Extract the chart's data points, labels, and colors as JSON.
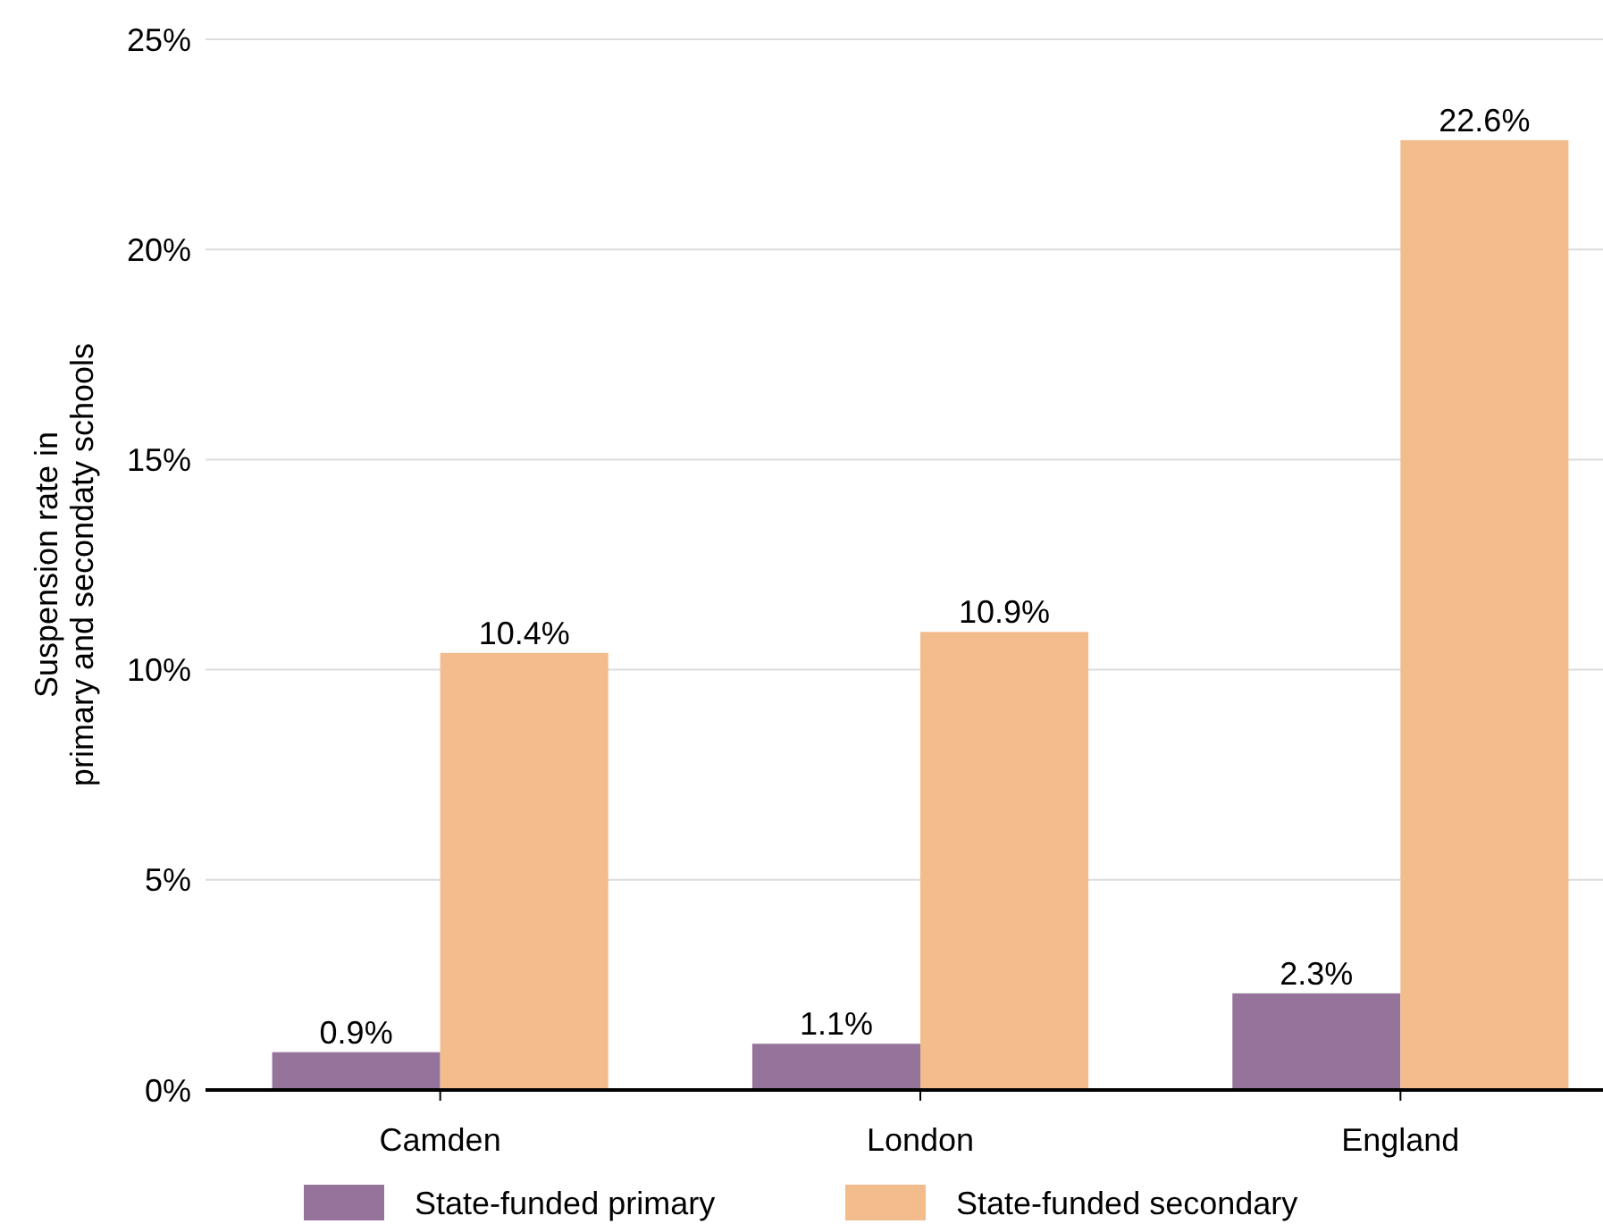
{
  "chart_data": {
    "type": "bar",
    "ylabel": "Suspension rate in\nprimary and secondaty schools",
    "categories": [
      "Camden",
      "London",
      "England"
    ],
    "series": [
      {
        "name": "State-funded primary",
        "color": "#96739b",
        "values": [
          0.9,
          1.1,
          2.3
        ],
        "value_labels": [
          "0.9%",
          "1.1%",
          "2.3%"
        ]
      },
      {
        "name": "State-funded secondary",
        "color": "#f3bc8c",
        "values": [
          10.4,
          10.9,
          22.6
        ],
        "value_labels": [
          "10.4%",
          "10.9%",
          "22.6%"
        ]
      }
    ],
    "ylim": [
      0,
      25
    ],
    "yticks": [
      {
        "value": 0,
        "label": "0%"
      },
      {
        "value": 5,
        "label": "5%"
      },
      {
        "value": 10,
        "label": "10%"
      },
      {
        "value": 15,
        "label": "15%"
      },
      {
        "value": 20,
        "label": "20%"
      },
      {
        "value": 25,
        "label": "25%"
      }
    ],
    "grid": "y",
    "legend": "bottom"
  }
}
